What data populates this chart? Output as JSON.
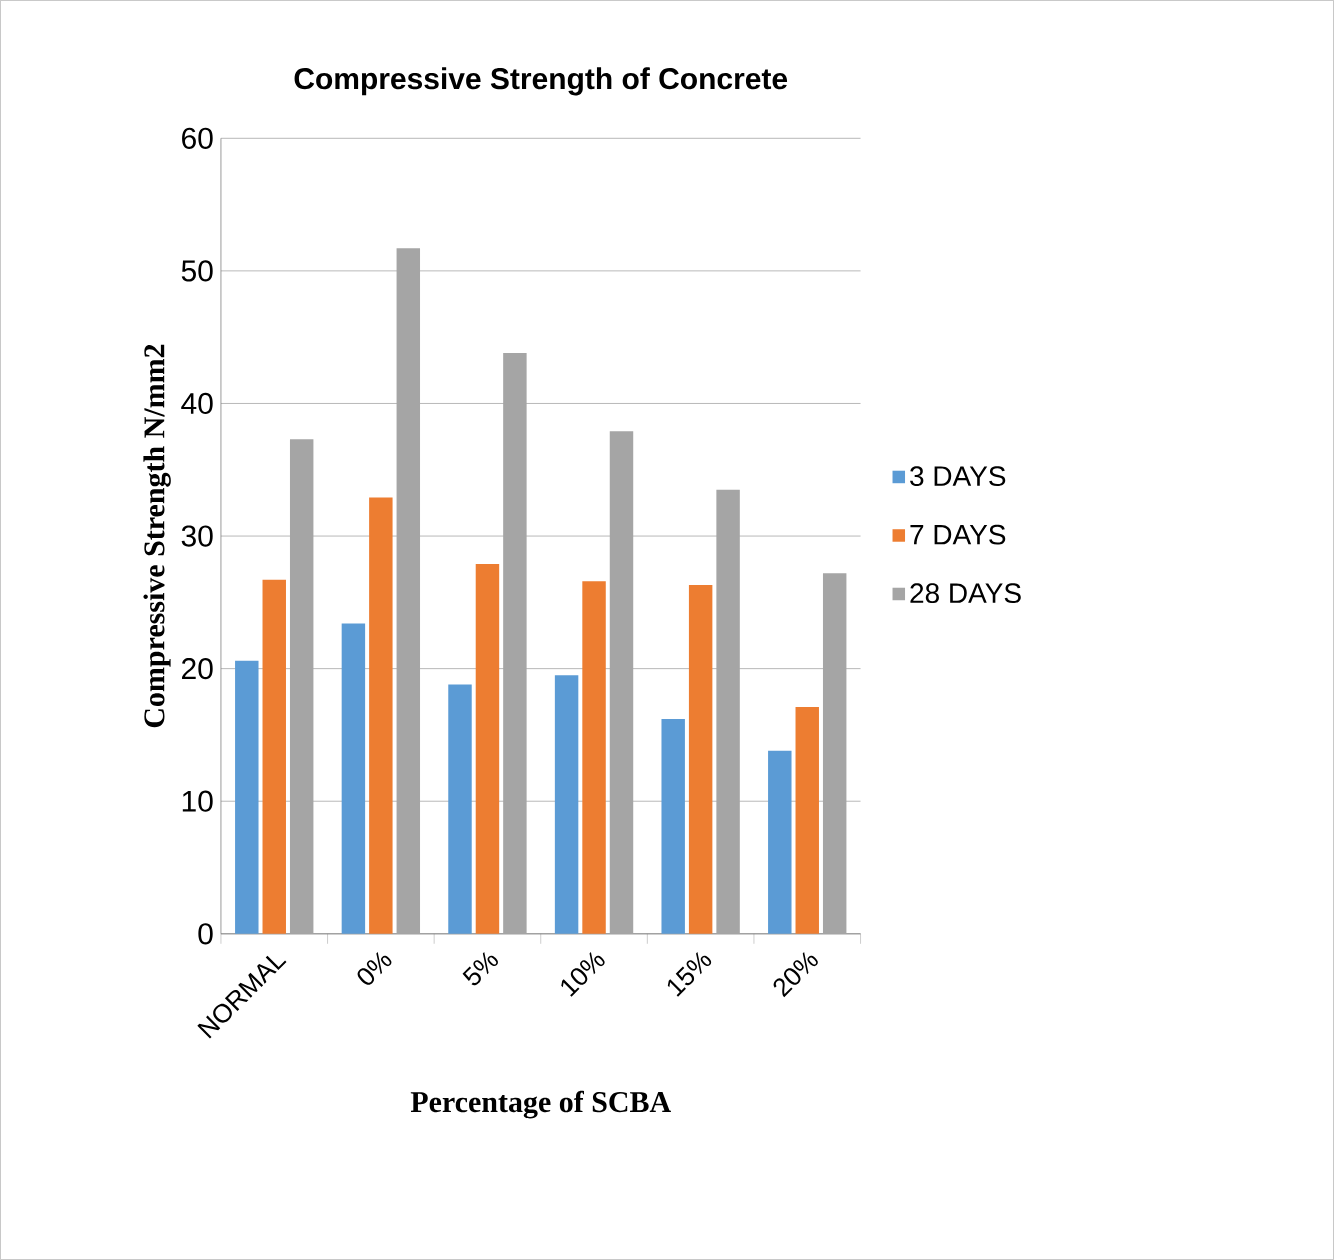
{
  "chart_data": {
    "type": "bar",
    "title": "Compressive Strength of Concrete",
    "xlabel": "Percentage of SCBA",
    "ylabel": "Compressive Strength N/mm2",
    "categories": [
      "NORMAL",
      "0%",
      "5%",
      "10%",
      "15%",
      "20%"
    ],
    "series": [
      {
        "name": "3 DAYS",
        "color": "#5b9bd5",
        "values": [
          20.6,
          23.4,
          18.8,
          19.5,
          16.2,
          13.8
        ]
      },
      {
        "name": "7 DAYS",
        "color": "#ed7d31",
        "values": [
          26.7,
          32.9,
          27.9,
          26.6,
          26.3,
          17.1
        ]
      },
      {
        "name": "28 DAYS",
        "color": "#a5a5a5",
        "values": [
          37.3,
          51.7,
          43.8,
          37.9,
          33.5,
          27.2
        ]
      }
    ],
    "ylim": [
      0,
      60
    ],
    "yticks": [
      0,
      10,
      20,
      30,
      40,
      50,
      60
    ],
    "grid": "y",
    "legend": "right"
  }
}
